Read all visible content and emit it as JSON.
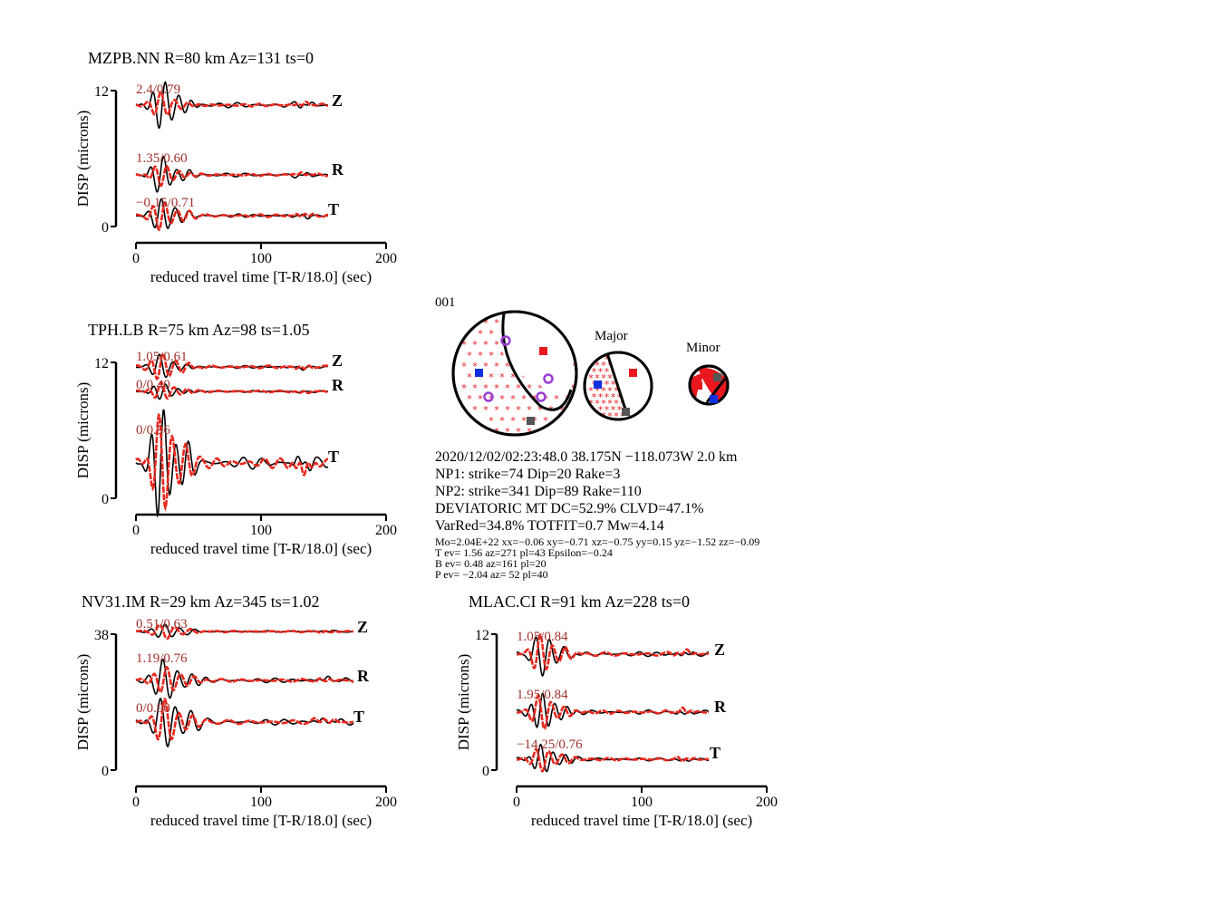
{
  "colors": {
    "observed": "#000000",
    "synthetic": "#e8281e",
    "stat_text": "#a0302a",
    "t_axis": "#e8181e",
    "p_axis": "#1030e0",
    "b_axis": "#555555",
    "station_marker": "#9a3fcf"
  },
  "chart_data": [
    {
      "type": "line",
      "title": "MZPB.NN R=80 km Az=131 ts=0",
      "xlabel": "reduced travel time [T-R/18.0] (sec)",
      "ylabel": "DISP (microns)",
      "xlim": [
        0,
        200
      ],
      "xticks": [
        "0",
        "100",
        "200"
      ],
      "yticks": [
        "12",
        "0"
      ],
      "traces": [
        {
          "component": "Z",
          "stat": "2.4/0.79",
          "obs_amp": 1.0,
          "syn_amp": 0.55,
          "seed": 1
        },
        {
          "component": "R",
          "stat": "1.35/0.60",
          "obs_amp": 0.75,
          "syn_amp": 0.45,
          "seed": 2
        },
        {
          "component": "T",
          "stat": "−0.15/0.71",
          "obs_amp": 0.65,
          "syn_amp": 0.6,
          "seed": 3
        }
      ]
    },
    {
      "type": "line",
      "title": "TPH.LB R=75 km Az=98 ts=1.05",
      "xlabel": "reduced travel time [T-R/18.0] (sec)",
      "ylabel": "DISP (microns)",
      "xlim": [
        0,
        200
      ],
      "xticks": [
        "0",
        "100",
        "200"
      ],
      "yticks": [
        "12",
        "0"
      ],
      "traces": [
        {
          "component": "Z",
          "stat": "1.05/0.61",
          "obs_amp": 0.5,
          "syn_amp": 0.55,
          "seed": 4
        },
        {
          "component": "R",
          "stat": "0/0.40",
          "obs_amp": 0.3,
          "syn_amp": 0.35,
          "seed": 5
        },
        {
          "component": "T",
          "stat": "0/0.96",
          "obs_amp": 2.2,
          "syn_amp": 2.0,
          "seed": 6
        }
      ]
    },
    {
      "type": "line",
      "title": "NV31.IM R=29 km Az=345 ts=1.02",
      "xlabel": "reduced travel time [T-R/18.0] (sec)",
      "ylabel": "DISP (microns)",
      "xlim": [
        0,
        200
      ],
      "xticks": [
        "0",
        "100",
        "200"
      ],
      "yticks": [
        "38",
        "0"
      ],
      "traces": [
        {
          "component": "Z",
          "stat": "0.51/0.63",
          "obs_amp": 0.3,
          "syn_amp": 0.3,
          "seed": 7
        },
        {
          "component": "R",
          "stat": "1.19/0.76",
          "obs_amp": 0.9,
          "syn_amp": 0.6,
          "seed": 8
        },
        {
          "component": "T",
          "stat": "0/0.90",
          "obs_amp": 1.1,
          "syn_amp": 0.9,
          "seed": 9
        }
      ]
    },
    {
      "type": "line",
      "title": "MLAC.CI R=91 km Az=228 ts=0",
      "xlabel": "reduced travel time [T-R/18.0] (sec)",
      "ylabel": "DISP (microns)",
      "xlim": [
        0,
        200
      ],
      "xticks": [
        "0",
        "100",
        "200"
      ],
      "yticks": [
        "12",
        "0"
      ],
      "traces": [
        {
          "component": "Z",
          "stat": "1.05/0.84",
          "obs_amp": 0.9,
          "syn_amp": 0.8,
          "seed": 10
        },
        {
          "component": "R",
          "stat": "1.95/0.84",
          "obs_amp": 0.8,
          "syn_amp": 0.7,
          "seed": 11
        },
        {
          "component": "T",
          "stat": "−14.25/0.76",
          "obs_amp": 0.6,
          "syn_amp": 0.55,
          "seed": 12
        }
      ]
    }
  ],
  "mechanism": {
    "event_id": "001",
    "major_label": "Major",
    "minor_label": "Minor",
    "origin": "2020/12/02/02:23:48.0 38.175N −118.073W 2.0 km",
    "np1": "NP1: strike=74 Dip=20 Rake=3",
    "np2": "NP2: strike=341 Dip=89 Rake=110",
    "deviatoric": "DEVIATORIC MT DC=52.9% CLVD=47.1%",
    "varred": "VarRed=34.8% TOTFIT=0.7 Mw=4.14",
    "mo": "Mo=2.04E+22 xx=−0.06 xy=−0.71 xz=−0.75 yy=0.15 yz=−1.52 zz=−0.09",
    "t_ev": "T ev=  1.56 az=271 pl=43 Epsilon=−0.24",
    "b_ev": "B ev=  0.48 az=161 pl=20",
    "p_ev": "P ev= −2.04 az= 52 pl=40"
  }
}
